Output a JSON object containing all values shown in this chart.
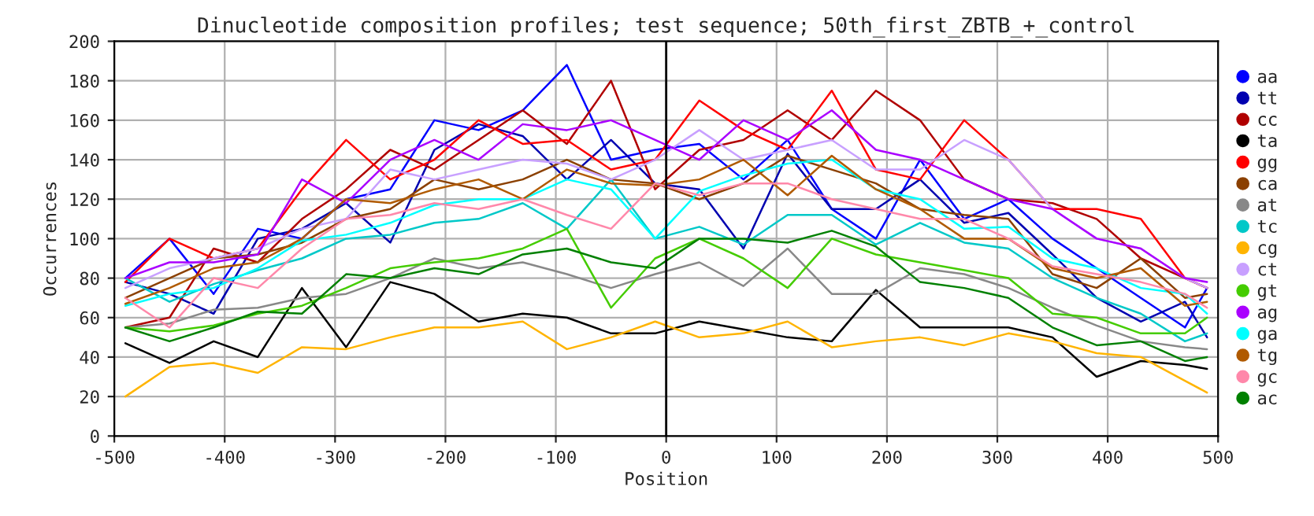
{
  "chart_data": {
    "type": "line",
    "title": "Dinucleotide composition profiles; test sequence; 50th_first_ZBTB_+_control",
    "xlabel": "Position",
    "ylabel": "Occurrences",
    "x": [
      -490,
      -450,
      -410,
      -370,
      -330,
      -290,
      -250,
      -210,
      -170,
      -130,
      -90,
      -50,
      -10,
      30,
      70,
      110,
      150,
      190,
      230,
      270,
      310,
      350,
      390,
      430,
      470,
      490
    ],
    "xlim": [
      -500,
      500
    ],
    "xticks": [
      -500,
      -400,
      -300,
      -200,
      -100,
      0,
      100,
      200,
      300,
      400,
      500
    ],
    "ylim": [
      0,
      200
    ],
    "yticks": [
      0,
      20,
      40,
      60,
      80,
      100,
      120,
      140,
      160,
      180,
      200
    ],
    "grid": true,
    "legend": "right",
    "marker": "none",
    "line_style": "solid",
    "ref_lines": [
      {
        "axis": "x",
        "value": 0,
        "color": "#000000"
      }
    ],
    "series": [
      {
        "name": "aa",
        "color": "#0000ff",
        "values": [
          80,
          100,
          72,
          105,
          100,
          120,
          125,
          160,
          155,
          165,
          188,
          140,
          145,
          148,
          130,
          150,
          115,
          100,
          140,
          110,
          120,
          100,
          85,
          70,
          55,
          75
        ]
      },
      {
        "name": "tt",
        "color": "#0000b0",
        "values": [
          78,
          72,
          62,
          100,
          105,
          118,
          98,
          145,
          158,
          152,
          130,
          150,
          128,
          125,
          95,
          143,
          115,
          115,
          130,
          108,
          113,
          92,
          70,
          58,
          68,
          50
        ]
      },
      {
        "name": "cc",
        "color": "#b00000",
        "values": [
          55,
          60,
          95,
          88,
          110,
          125,
          145,
          135,
          150,
          165,
          148,
          180,
          125,
          145,
          150,
          165,
          150,
          175,
          160,
          130,
          120,
          118,
          110,
          90,
          80,
          75
        ]
      },
      {
        "name": "ta",
        "color": "#000000",
        "values": [
          47,
          37,
          48,
          40,
          75,
          45,
          78,
          72,
          58,
          62,
          60,
          52,
          52,
          58,
          54,
          50,
          48,
          74,
          55,
          55,
          55,
          50,
          30,
          38,
          36,
          34
        ]
      },
      {
        "name": "gg",
        "color": "#ff0000",
        "values": [
          78,
          100,
          90,
          95,
          125,
          150,
          130,
          140,
          160,
          148,
          150,
          135,
          140,
          170,
          155,
          145,
          175,
          135,
          130,
          160,
          140,
          115,
          115,
          110,
          80,
          75
        ]
      },
      {
        "name": "ca",
        "color": "#8b4000",
        "values": [
          70,
          80,
          90,
          92,
          98,
          110,
          115,
          130,
          125,
          130,
          140,
          130,
          128,
          120,
          128,
          142,
          135,
          128,
          115,
          112,
          110,
          82,
          75,
          90,
          70,
          72
        ]
      },
      {
        "name": "at",
        "color": "#888888",
        "values": [
          55,
          57,
          64,
          65,
          70,
          72,
          80,
          90,
          85,
          88,
          82,
          75,
          82,
          88,
          76,
          95,
          72,
          72,
          85,
          82,
          75,
          65,
          56,
          48,
          45,
          44
        ]
      },
      {
        "name": "tc",
        "color": "#00c8c8",
        "values": [
          80,
          68,
          77,
          84,
          90,
          100,
          102,
          108,
          110,
          118,
          105,
          130,
          100,
          106,
          97,
          112,
          112,
          97,
          108,
          98,
          95,
          80,
          70,
          62,
          48,
          52
        ]
      },
      {
        "name": "cg",
        "color": "#ffb400",
        "values": [
          20,
          35,
          37,
          32,
          45,
          44,
          50,
          55,
          55,
          58,
          44,
          50,
          58,
          50,
          52,
          58,
          45,
          48,
          50,
          46,
          52,
          48,
          42,
          40,
          28,
          22
        ]
      },
      {
        "name": "ct",
        "color": "#c8a0ff",
        "values": [
          75,
          85,
          90,
          95,
          105,
          110,
          135,
          130,
          135,
          140,
          138,
          130,
          140,
          155,
          140,
          145,
          150,
          135,
          135,
          150,
          140,
          115,
          100,
          95,
          80,
          75
        ]
      },
      {
        "name": "gt",
        "color": "#44cc00",
        "values": [
          55,
          53,
          56,
          62,
          66,
          75,
          85,
          88,
          90,
          95,
          105,
          65,
          90,
          100,
          90,
          75,
          100,
          92,
          88,
          84,
          80,
          62,
          60,
          52,
          52,
          60
        ]
      },
      {
        "name": "ag",
        "color": "#aa00ff",
        "values": [
          80,
          88,
          88,
          92,
          130,
          118,
          140,
          150,
          140,
          158,
          155,
          160,
          150,
          140,
          160,
          150,
          165,
          145,
          140,
          130,
          120,
          115,
          100,
          95,
          80,
          78
        ]
      },
      {
        "name": "ga",
        "color": "#00ffff",
        "values": [
          66,
          72,
          75,
          85,
          99,
          102,
          108,
          117,
          120,
          120,
          130,
          125,
          100,
          124,
          132,
          138,
          140,
          125,
          120,
          105,
          106,
          90,
          85,
          75,
          72,
          62
        ]
      },
      {
        "name": "tg",
        "color": "#b05a00",
        "values": [
          67,
          75,
          85,
          88,
          100,
          120,
          118,
          125,
          130,
          120,
          135,
          128,
          127,
          130,
          140,
          122,
          142,
          125,
          115,
          100,
          100,
          85,
          80,
          85,
          66,
          68
        ]
      },
      {
        "name": "gc",
        "color": "#ff88aa",
        "values": [
          70,
          55,
          80,
          75,
          95,
          110,
          112,
          118,
          115,
          120,
          112,
          105,
          128,
          122,
          128,
          128,
          120,
          115,
          110,
          110,
          100,
          86,
          82,
          78,
          72,
          65
        ]
      },
      {
        "name": "ac",
        "color": "#008000",
        "values": [
          55,
          48,
          55,
          63,
          62,
          82,
          80,
          85,
          82,
          92,
          95,
          88,
          85,
          100,
          100,
          98,
          104,
          96,
          78,
          75,
          70,
          55,
          46,
          48,
          38,
          40
        ]
      }
    ]
  }
}
